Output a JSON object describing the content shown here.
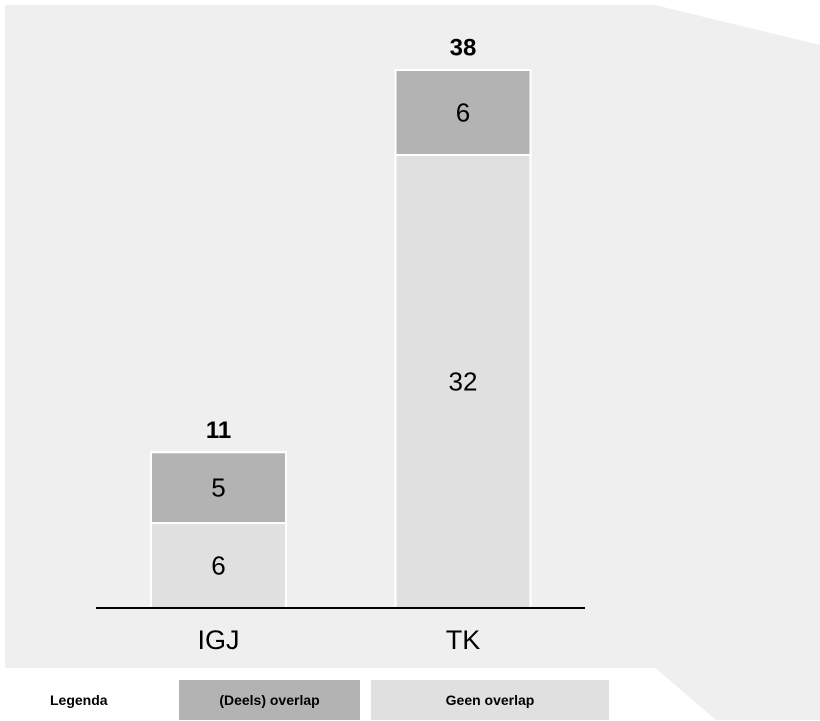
{
  "chart_data": {
    "type": "bar",
    "stacked": true,
    "categories": [
      "IGJ",
      "TK"
    ],
    "series": [
      {
        "name": "Geen overlap",
        "values": [
          6,
          32
        ],
        "color": "#e0e0e0"
      },
      {
        "name": "(Deels) overlap",
        "values": [
          5,
          6
        ],
        "color": "#b3b3b3"
      }
    ],
    "totals": [
      11,
      38
    ],
    "ylim": [
      0,
      38
    ],
    "legend": {
      "title": "Legenda",
      "placement": "bottom"
    },
    "grid": false
  },
  "colors": {
    "panel": "#efefef",
    "baseline": "#000000"
  }
}
